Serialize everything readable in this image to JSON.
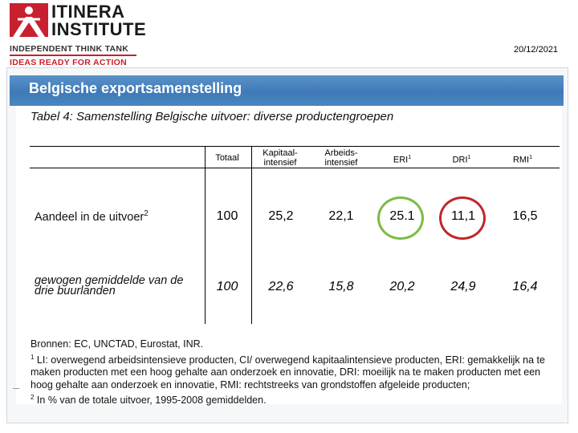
{
  "header": {
    "logo_name_line1": "ITINERA",
    "logo_name_line2": "INSTITUTE",
    "logo_tagline1": "INDEPENDENT THINK TANK",
    "logo_tagline2": "IDEAS READY FOR ACTION",
    "date": "20/12/2021",
    "brand_color": "#c8202f"
  },
  "slide": {
    "title": "Belgische exportsamenstelling",
    "table_title": "Tabel 4: Samenstelling Belgische uitvoer: diverse productengroepen"
  },
  "table": {
    "columns": [
      {
        "label": "Totaal"
      },
      {
        "label": "Kapitaal-\nintensief"
      },
      {
        "label": "Arbeids-\nintensief"
      },
      {
        "label": "ERI",
        "sup": "1"
      },
      {
        "label": "DRI",
        "sup": "1"
      },
      {
        "label": "RMI",
        "sup": "1"
      }
    ],
    "rows": [
      {
        "label": "Aandeel in de uitvoer",
        "label_sup": "2",
        "values": [
          "100",
          "25,2",
          "22,1",
          "25.1",
          "11,1",
          "16,5"
        ]
      },
      {
        "label_line1": "gewogen gemiddelde van de",
        "label_line2": "drie buurlanden",
        "values": [
          "100",
          "22,6",
          "15,8",
          "20,2",
          "24,9",
          "16,4"
        ]
      }
    ],
    "highlight_colors": {
      "eri": "#7dbb42",
      "dri": "#c0262d"
    }
  },
  "footnotes": {
    "sources": "Bronnen: EC, UNCTAD, Eurostat, INR.",
    "note1_mark": "1",
    "note1": " LI: overwegend arbeidsintensieve producten, CI/ overwegend kapitaalintensieve producten, ERI: gemakkelijk na te maken producten met een hoog gehalte aan onderzoek en innovatie, DRI: moeilijk na te maken producten met een hoog gehalte aan onderzoek en innovatie, RMI: rechtstreeks van grondstoffen afgeleide producten;",
    "note2_mark": "2",
    "note2": " In % van de totale uitvoer, 1995-2008 gemiddelden."
  }
}
